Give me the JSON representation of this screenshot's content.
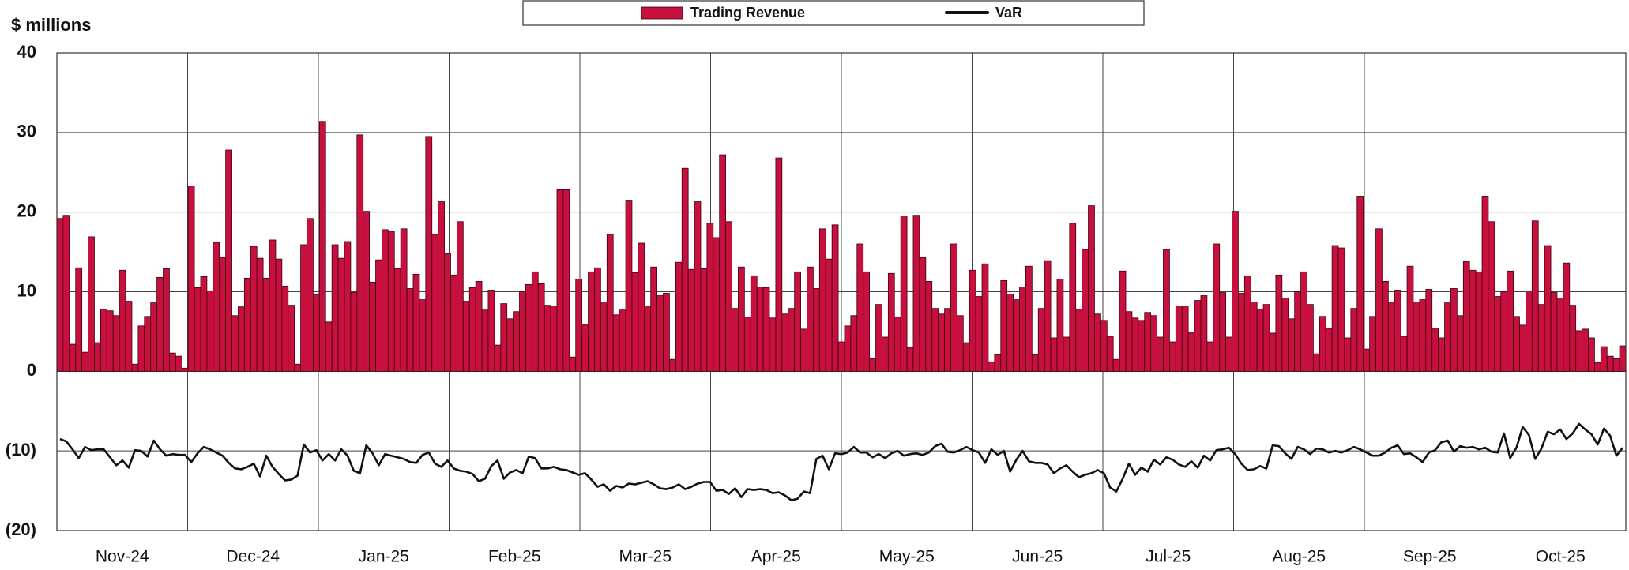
{
  "chart_data": {
    "type": "bar_line",
    "y_label": "$ millions",
    "x_labels": [
      "Nov-24",
      "Dec-24",
      "Jan-25",
      "Feb-25",
      "Mar-25",
      "Apr-25",
      "May-25",
      "Jun-25",
      "Jul-25",
      "Aug-25",
      "Sep-25",
      "Oct-25"
    ],
    "ylim": [
      -20,
      40
    ],
    "yticks": [
      40,
      30,
      20,
      10,
      0,
      {
        "value": -10,
        "label": "(10)"
      },
      {
        "value": -20,
        "label": "(20)"
      }
    ],
    "grid": true,
    "legend": "top",
    "series": [
      {
        "name": "Trading Revenue",
        "type": "bar",
        "color": "#c8103e",
        "values": [
          19.2,
          19.6,
          3.4,
          13,
          2.4,
          16.9,
          3.6,
          7.8,
          7.6,
          7,
          12.7,
          8.8,
          0.9,
          5.7,
          6.9,
          8.6,
          11.8,
          12.9,
          2.3,
          1.9,
          0.4,
          23.3,
          10.5,
          11.9,
          10.1,
          16.2,
          14.3,
          27.8,
          7,
          8.1,
          11.7,
          15.7,
          14.2,
          11.7,
          16.5,
          14.1,
          10.7,
          8.3,
          0.9,
          15.9,
          19.2,
          9.6,
          31.4,
          6.2,
          15.9,
          14.2,
          16.3,
          9.9,
          29.7,
          20.1,
          11.2,
          14,
          17.8,
          17.6,
          12.9,
          17.9,
          10.4,
          12.2,
          9,
          29.5,
          17.2,
          21.3,
          14.8,
          12.1,
          18.8,
          8.8,
          10.5,
          11.3,
          7.7,
          10.2,
          3.3,
          8.5,
          6.6,
          7.5,
          10,
          10.9,
          12.5,
          11,
          8.3,
          8.2,
          22.8,
          22.8,
          1.8,
          11.6,
          5.9,
          12.5,
          13,
          8.7,
          17.2,
          7.1,
          7.7,
          21.5,
          12.4,
          16.1,
          8.2,
          13.1,
          9.5,
          9.8,
          1.5,
          13.7,
          25.5,
          12.8,
          21.3,
          12.9,
          18.6,
          16.8,
          27.2,
          18.8,
          7.9,
          13.1,
          6.8,
          12,
          10.6,
          10.5,
          6.7,
          26.8,
          7.2,
          7.9,
          12.5,
          5.3,
          13.1,
          10.4,
          17.9,
          14.1,
          18.4,
          3.7,
          5.7,
          7,
          16,
          12.5,
          1.6,
          8.4,
          4.3,
          12.3,
          6.8,
          19.5,
          3,
          19.6,
          14.3,
          11.3,
          7.9,
          7.2,
          7.9,
          16,
          7,
          3.6,
          12.7,
          9.4,
          13.5,
          1.2,
          2.1,
          11.4,
          9.7,
          9,
          10.6,
          13.2,
          2.1,
          7.9,
          13.9,
          4.2,
          11.6,
          4.3,
          18.6,
          7.8,
          15.3,
          20.8,
          7.2,
          6.4,
          4.4,
          1.5,
          12.6,
          7.5,
          6.7,
          6.4,
          7.4,
          7,
          4.3,
          15.3,
          3.7,
          8.2,
          8.2,
          4.9,
          8.9,
          9.5,
          3.7,
          16,
          9.9,
          4.3,
          20.1,
          9.8,
          12,
          8.7,
          7.8,
          8.4,
          4.8,
          12.1,
          9.2,
          6.6,
          10,
          12.5,
          8.4,
          2.2,
          6.9,
          5.4,
          15.8,
          15.5,
          4.2,
          7.9,
          22,
          2.8,
          6.9,
          17.9,
          11.3,
          8.6,
          10.2,
          4.4,
          13.2,
          8.7,
          9,
          10.3,
          5.4,
          4.2,
          8.6,
          10.4,
          7,
          13.8,
          12.7,
          12.5,
          22,
          18.8,
          9.4,
          10,
          12.6,
          6.9,
          5.8,
          10.1,
          18.9,
          8.4,
          15.8,
          9.9,
          9.2,
          13.6,
          8.3,
          5.1,
          5.3,
          4.2,
          1.1,
          3.1,
          1.9,
          1.6,
          3.2
        ]
      },
      {
        "name": "VaR",
        "type": "line",
        "color": "#111111",
        "values": [
          -8.5,
          -8.8,
          -9.8,
          -10.9,
          -9.5,
          -9.9,
          -9.8,
          -9.8,
          -10.8,
          -11.8,
          -11.2,
          -12.1,
          -9.9,
          -10,
          -10.7,
          -8.7,
          -9.8,
          -10.6,
          -10.4,
          -10.5,
          -10.5,
          -11.4,
          -10.3,
          -9.5,
          -9.8,
          -10.2,
          -10.6,
          -11.5,
          -12.2,
          -12.3,
          -12,
          -11.6,
          -13.2,
          -10.6,
          -12,
          -12.9,
          -13.7,
          -13.6,
          -13.1,
          -9.2,
          -10.2,
          -9.9,
          -11.2,
          -10.4,
          -11.2,
          -9.8,
          -10.6,
          -12.5,
          -12.8,
          -9.3,
          -10.3,
          -11.8,
          -10.4,
          -10.6,
          -10.8,
          -11,
          -11.4,
          -11.5,
          -10.5,
          -10.2,
          -11.6,
          -12,
          -11.2,
          -12.2,
          -12.5,
          -12.6,
          -12.9,
          -13.8,
          -13.5,
          -11.9,
          -11.2,
          -13.5,
          -12.7,
          -12.4,
          -12.8,
          -10.7,
          -10.9,
          -12.2,
          -12.2,
          -12,
          -12.3,
          -12.4,
          -12.7,
          -13,
          -12.8,
          -13.6,
          -14.5,
          -14.2,
          -15,
          -14.4,
          -14.6,
          -14.1,
          -14.2,
          -14,
          -13.8,
          -14.2,
          -14.7,
          -14.8,
          -14.6,
          -14.2,
          -14.8,
          -14.5,
          -14.1,
          -13.9,
          -13.9,
          -15,
          -14.9,
          -15.4,
          -14.7,
          -15.8,
          -14.8,
          -14.9,
          -14.8,
          -14.9,
          -15.3,
          -15.2,
          -15.6,
          -16.2,
          -16,
          -15.1,
          -15.3,
          -11,
          -10.6,
          -12.3,
          -10.3,
          -10.4,
          -10.2,
          -9.5,
          -10.2,
          -10.2,
          -10.8,
          -10.4,
          -10.9,
          -10.3,
          -10,
          -10.6,
          -10.4,
          -10.3,
          -10.5,
          -10.2,
          -9.4,
          -9.1,
          -10.1,
          -10.2,
          -9.9,
          -9.5,
          -9.9,
          -10.2,
          -11.5,
          -9.8,
          -10.5,
          -10,
          -12.6,
          -11.1,
          -10,
          -11.3,
          -11.5,
          -11.5,
          -11.7,
          -12.8,
          -12.2,
          -11.8,
          -12.6,
          -13.3,
          -13,
          -12.8,
          -12.4,
          -12.8,
          -14.6,
          -15.1,
          -13.5,
          -11.6,
          -13,
          -12.1,
          -12.6,
          -11.1,
          -11.7,
          -10.8,
          -11.1,
          -11.7,
          -12,
          -11.3,
          -12.1,
          -10.6,
          -11.2,
          -9.9,
          -9.8,
          -9.6,
          -10.4,
          -11.6,
          -12.4,
          -12.3,
          -11.9,
          -12.2,
          -9.3,
          -9.4,
          -10.3,
          -11,
          -9.5,
          -9.8,
          -10.4,
          -9.7,
          -9.8,
          -10.2,
          -10,
          -10.2,
          -9.9,
          -9.5,
          -9.8,
          -10.2,
          -10.6,
          -10.6,
          -10.2,
          -9.6,
          -9.3,
          -10.4,
          -10.3,
          -10.8,
          -11.4,
          -10.2,
          -9.9,
          -8.9,
          -8.7,
          -10.1,
          -9.4,
          -9.6,
          -9.5,
          -9.8,
          -9.6,
          -10.1,
          -10.2,
          -7.8,
          -10.9,
          -9.6,
          -7,
          -8,
          -11,
          -9.7,
          -7.6,
          -7.9,
          -7.3,
          -8.5,
          -7.8,
          -6.6,
          -7.3,
          -7.9,
          -9.2,
          -7.2,
          -8.1,
          -10.6,
          -9.6
        ]
      }
    ]
  }
}
